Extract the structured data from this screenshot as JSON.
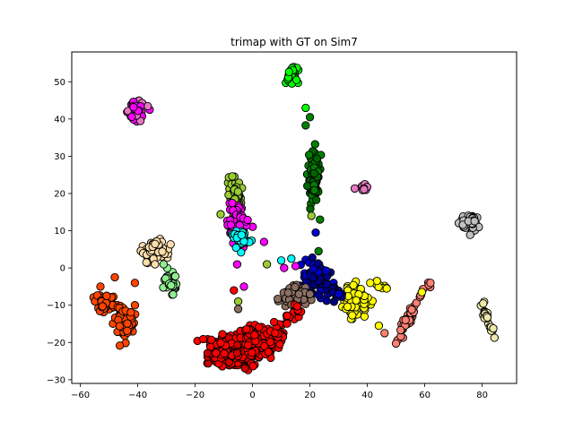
{
  "chart_data": {
    "type": "scatter",
    "title": "trimap with GT on Sim7",
    "xlabel": "",
    "ylabel": "",
    "xlim": [
      -63,
      92
    ],
    "ylim": [
      -31,
      58
    ],
    "xticks": [
      -60,
      -40,
      -20,
      0,
      20,
      40,
      60,
      80
    ],
    "yticks": [
      -30,
      -20,
      -10,
      0,
      10,
      20,
      30,
      40,
      50
    ],
    "grid": false,
    "legend": "none",
    "marker_edge_color": "#000000",
    "clusters": [
      {
        "color": "#ff00ff",
        "cx": -40.5,
        "cy": 42,
        "sx": 1.2,
        "sy": 1.3,
        "n": 60,
        "tone": "#e377c2"
      },
      {
        "color": "#00ff00",
        "cx": 13.5,
        "cy": 51.5,
        "sx": 1.0,
        "sy": 1.2,
        "n": 55
      },
      {
        "color": "#008000",
        "cx": 21.5,
        "cy": 24,
        "sx": 1.0,
        "sy": 3.0,
        "n": 90,
        "tone": "#006400"
      },
      {
        "color": "#e377c2",
        "cx": 38.5,
        "cy": 21.5,
        "sx": 1.5,
        "sy": 0.8,
        "n": 14,
        "tone": "#da70d6"
      },
      {
        "color": "#9acd32",
        "cx": -6,
        "cy": 20,
        "sx": 1.2,
        "sy": 2.3,
        "n": 60
      },
      {
        "color": "#ff00ff",
        "cx": -5,
        "cy": 11.5,
        "sx": 1.6,
        "sy": 2.6,
        "n": 110
      },
      {
        "color": "#00ffff",
        "cx": -4,
        "cy": 8,
        "sx": 1.8,
        "sy": 1.2,
        "n": 40
      },
      {
        "color": "#c0c0c0",
        "cx": 75.5,
        "cy": 12,
        "sx": 1.5,
        "sy": 1.3,
        "n": 60
      },
      {
        "color": "#ffdead",
        "cx": -34,
        "cy": 5,
        "sx": 2.0,
        "sy": 1.4,
        "n": 75
      },
      {
        "color": "#90ee90",
        "cx": -28.5,
        "cy": -4,
        "sx": 1.3,
        "sy": 1.4,
        "n": 30
      },
      {
        "color": "#0000cd",
        "cx": 22,
        "cy": -3,
        "sx": 2.5,
        "sy": 2.0,
        "n": 90,
        "tone": "#00008b"
      },
      {
        "color": "#8b6f61",
        "cx": 15.5,
        "cy": -7.5,
        "sx": 2.5,
        "sy": 1.3,
        "n": 60
      },
      {
        "color": "#ffff00",
        "cx": 36,
        "cy": -8.5,
        "sx": 2.0,
        "sy": 2.3,
        "n": 90
      },
      {
        "color": "#ff4500",
        "cx": -51.5,
        "cy": -9.5,
        "sx": 1.8,
        "sy": 1.2,
        "n": 70
      },
      {
        "color": "#ff4500",
        "cx": -44.5,
        "cy": -15,
        "sx": 1.5,
        "sy": 2.0,
        "n": 70
      },
      {
        "color": "#ff0000",
        "cx": -6,
        "cy": -22.5,
        "sx": 4.5,
        "sy": 2.0,
        "n": 260,
        "tone": "#cc0000"
      },
      {
        "color": "#ff0000",
        "cx": 3,
        "cy": -19,
        "sx": 3.5,
        "sy": 2.0,
        "n": 130
      }
    ],
    "strands": [
      {
        "color": "#fa8072",
        "from": [
          50,
          -19
        ],
        "to": [
          57,
          -10
        ],
        "n": 35,
        "jitter": 0.9
      },
      {
        "color": "#fa8072",
        "from": [
          57,
          -10
        ],
        "to": [
          62,
          -4
        ],
        "n": 8,
        "jitter": 0.6
      },
      {
        "color": "#eee8aa",
        "from": [
          80,
          -10
        ],
        "to": [
          84,
          -18
        ],
        "n": 25,
        "jitter": 0.6
      },
      {
        "color": "#ff0000",
        "from": [
          8,
          -17
        ],
        "to": [
          17,
          -10
        ],
        "n": 25,
        "jitter": 1.2
      },
      {
        "color": "#00008b",
        "from": [
          25,
          -4
        ],
        "to": [
          31,
          -8
        ],
        "n": 18,
        "jitter": 0.9
      },
      {
        "color": "#ffff00",
        "from": [
          38,
          -4
        ],
        "to": [
          48,
          -5
        ],
        "n": 8,
        "jitter": 0.5
      }
    ],
    "points": [
      {
        "x": 18.5,
        "y": 43,
        "color": "#00ff00"
      },
      {
        "x": 20,
        "y": 40.5,
        "color": "#008000"
      },
      {
        "x": 18.5,
        "y": 38.3,
        "color": "#008000"
      },
      {
        "x": 23.5,
        "y": 13,
        "color": "#008000"
      },
      {
        "x": 20.5,
        "y": 14,
        "color": "#9acd32"
      },
      {
        "x": 22,
        "y": 9.5,
        "color": "#0000cd"
      },
      {
        "x": 23,
        "y": 4.5,
        "color": "#008000"
      },
      {
        "x": 10,
        "y": 2,
        "color": "#00ffff"
      },
      {
        "x": 13.5,
        "y": 2.5,
        "color": "#00ffff"
      },
      {
        "x": 11,
        "y": 0,
        "color": "#ff00ff"
      },
      {
        "x": 15,
        "y": 0.5,
        "color": "#ff00ff"
      },
      {
        "x": 5,
        "y": 1,
        "color": "#9acd32"
      },
      {
        "x": 4,
        "y": 7,
        "color": "#ff00ff"
      },
      {
        "x": -6.5,
        "y": -6,
        "color": "#ff0000"
      },
      {
        "x": -3,
        "y": -5,
        "color": "#ff00ff"
      },
      {
        "x": -5,
        "y": -9,
        "color": "#9acd32"
      },
      {
        "x": -5,
        "y": -11,
        "color": "#8b6f61"
      },
      {
        "x": -48,
        "y": -2.5,
        "color": "#ff4500"
      },
      {
        "x": -41,
        "y": -4,
        "color": "#ff4500"
      },
      {
        "x": -53,
        "y": -5,
        "color": "#ff4500"
      },
      {
        "x": -41,
        "y": -10,
        "color": "#ff4500"
      },
      {
        "x": 59,
        "y": -6.5,
        "color": "#ffff00"
      },
      {
        "x": 44,
        "y": -15.5,
        "color": "#ffff00"
      },
      {
        "x": 46,
        "y": -17.5,
        "color": "#fa8072"
      },
      {
        "x": -31,
        "y": 1,
        "color": "#90ee90"
      },
      {
        "x": -34,
        "y": 1,
        "color": "#ffdead"
      },
      {
        "x": -37,
        "y": 1.5,
        "color": "#ffdead"
      },
      {
        "x": 62,
        "y": -4,
        "color": "#fa8072"
      },
      {
        "x": 41,
        "y": -4,
        "color": "#ffff00"
      },
      {
        "x": 30,
        "y": -7,
        "color": "#0000cd"
      }
    ]
  }
}
